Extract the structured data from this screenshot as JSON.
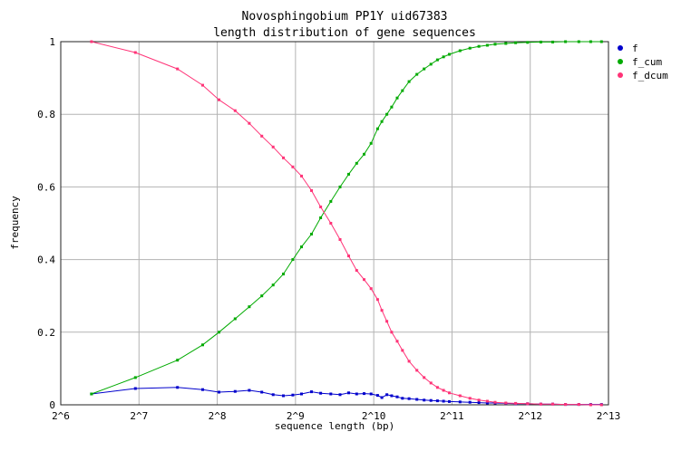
{
  "chart_data": {
    "type": "line",
    "title": "Novosphingobium PP1Y uid67383",
    "subtitle": "length distribution of gene sequences",
    "xlabel": "sequence length (bp)",
    "ylabel": "frequency",
    "x_scale": "log2",
    "xlim": [
      64,
      8192
    ],
    "ylim": [
      0,
      1
    ],
    "grid": true,
    "legend_position": "top-right",
    "x_tick_labels": [
      "2^6",
      "2^7",
      "2^8",
      "2^9",
      "2^10",
      "2^11",
      "2^12",
      "2^13"
    ],
    "y_tick_labels": [
      "0",
      "0.2",
      "0.4",
      "0.6",
      "0.8",
      "1"
    ],
    "series": [
      {
        "name": "f",
        "color": "#0000cc",
        "x": [
          84,
          124,
          180,
          225,
          260,
          300,
          340,
          380,
          420,
          460,
          500,
          540,
          590,
          640,
          700,
          760,
          820,
          880,
          940,
          1000,
          1060,
          1100,
          1150,
          1200,
          1260,
          1320,
          1400,
          1500,
          1600,
          1700,
          1800,
          1900,
          2000,
          2200,
          2400,
          2600,
          2800,
          3000,
          3300,
          3600,
          4000,
          4500,
          5000,
          5600,
          6300,
          7000,
          7700
        ],
        "y": [
          0.03,
          0.045,
          0.048,
          0.042,
          0.035,
          0.037,
          0.04,
          0.035,
          0.028,
          0.025,
          0.027,
          0.03,
          0.036,
          0.032,
          0.03,
          0.028,
          0.033,
          0.03,
          0.031,
          0.03,
          0.026,
          0.02,
          0.028,
          0.025,
          0.022,
          0.018,
          0.017,
          0.015,
          0.013,
          0.012,
          0.011,
          0.01,
          0.009,
          0.008,
          0.007,
          0.006,
          0.005,
          0.005,
          0.004,
          0.003,
          0.003,
          0.002,
          0.002,
          0.001,
          0.001,
          0.001,
          0.001
        ]
      },
      {
        "name": "f_cum",
        "color": "#00aa00",
        "x": [
          84,
          124,
          180,
          225,
          260,
          300,
          340,
          380,
          420,
          460,
          500,
          540,
          590,
          640,
          700,
          760,
          820,
          880,
          940,
          1000,
          1060,
          1100,
          1150,
          1200,
          1260,
          1320,
          1400,
          1500,
          1600,
          1700,
          1800,
          1900,
          2000,
          2200,
          2400,
          2600,
          2800,
          3000,
          3300,
          3600,
          4000,
          4500,
          5000,
          5600,
          6300,
          7000,
          7700
        ],
        "y": [
          0.03,
          0.075,
          0.123,
          0.165,
          0.2,
          0.237,
          0.27,
          0.3,
          0.33,
          0.36,
          0.4,
          0.435,
          0.47,
          0.515,
          0.56,
          0.6,
          0.635,
          0.665,
          0.69,
          0.72,
          0.76,
          0.78,
          0.8,
          0.82,
          0.845,
          0.865,
          0.89,
          0.91,
          0.925,
          0.938,
          0.95,
          0.958,
          0.965,
          0.975,
          0.982,
          0.987,
          0.99,
          0.993,
          0.995,
          0.997,
          0.998,
          0.999,
          0.999,
          1.0,
          1.0,
          1.0,
          1.0
        ]
      },
      {
        "name": "f_dcum",
        "color": "#ff3377",
        "x": [
          84,
          124,
          180,
          225,
          260,
          300,
          340,
          380,
          420,
          460,
          500,
          540,
          590,
          640,
          700,
          760,
          820,
          880,
          940,
          1000,
          1060,
          1100,
          1150,
          1200,
          1260,
          1320,
          1400,
          1500,
          1600,
          1700,
          1800,
          1900,
          2000,
          2200,
          2400,
          2600,
          2800,
          3000,
          3300,
          3600,
          4000,
          4500,
          5000,
          5600,
          6300,
          7000,
          7700
        ],
        "y": [
          1.0,
          0.97,
          0.925,
          0.88,
          0.84,
          0.81,
          0.775,
          0.74,
          0.71,
          0.68,
          0.655,
          0.63,
          0.59,
          0.545,
          0.5,
          0.455,
          0.41,
          0.37,
          0.345,
          0.32,
          0.29,
          0.26,
          0.23,
          0.2,
          0.175,
          0.15,
          0.12,
          0.095,
          0.075,
          0.06,
          0.048,
          0.04,
          0.033,
          0.025,
          0.018,
          0.013,
          0.01,
          0.007,
          0.005,
          0.004,
          0.003,
          0.002,
          0.002,
          0.001,
          0.001,
          0.0,
          0.0
        ]
      }
    ]
  }
}
